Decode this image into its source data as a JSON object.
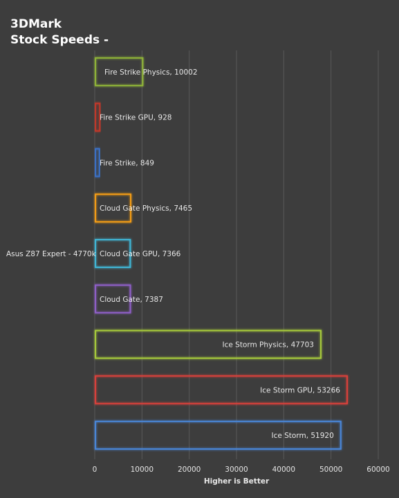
{
  "chart_data": {
    "type": "bar",
    "orientation": "horizontal",
    "title": "3DMark\nStock Speeds -",
    "xlabel": "Higher is Better",
    "ylabel": "",
    "category": "Asus Z87 Expert - 4770k",
    "xlim": [
      0,
      60000
    ],
    "xticks": [
      0,
      10000,
      20000,
      30000,
      40000,
      50000,
      60000
    ],
    "grid": true,
    "legend": "none",
    "series": [
      {
        "name": "Fire Strike Physics",
        "value": 10002,
        "label": "Fire Strike Physics, 10002",
        "color": "#8fb339"
      },
      {
        "name": "Fire Strike GPU",
        "value": 928,
        "label": "Fire Strike GPU, 928",
        "color": "#c0392b"
      },
      {
        "name": "Fire Strike",
        "value": 849,
        "label": "Fire Strike, 849",
        "color": "#3a6fc4"
      },
      {
        "name": "Cloud Gate Physics",
        "value": 7465,
        "label": "Cloud Gate Physics, 7465",
        "color": "#f39c12"
      },
      {
        "name": "Cloud Gate GPU",
        "value": 7366,
        "label": "Cloud Gate GPU, 7366",
        "color": "#3fb6d6"
      },
      {
        "name": "Cloud Gate",
        "value": 7387,
        "label": "Cloud Gate, 7387",
        "color": "#8e5ec7"
      },
      {
        "name": "Ice Storm Physics",
        "value": 47703,
        "label": "Ice Storm Physics, 47703",
        "color": "#a6c93b"
      },
      {
        "name": "Ice Storm GPU",
        "value": 53266,
        "label": "Ice Storm GPU, 53266",
        "color": "#d9413b"
      },
      {
        "name": "Ice Storm",
        "value": 51920,
        "label": "Ice Storm, 51920",
        "color": "#4a86d8"
      }
    ]
  }
}
